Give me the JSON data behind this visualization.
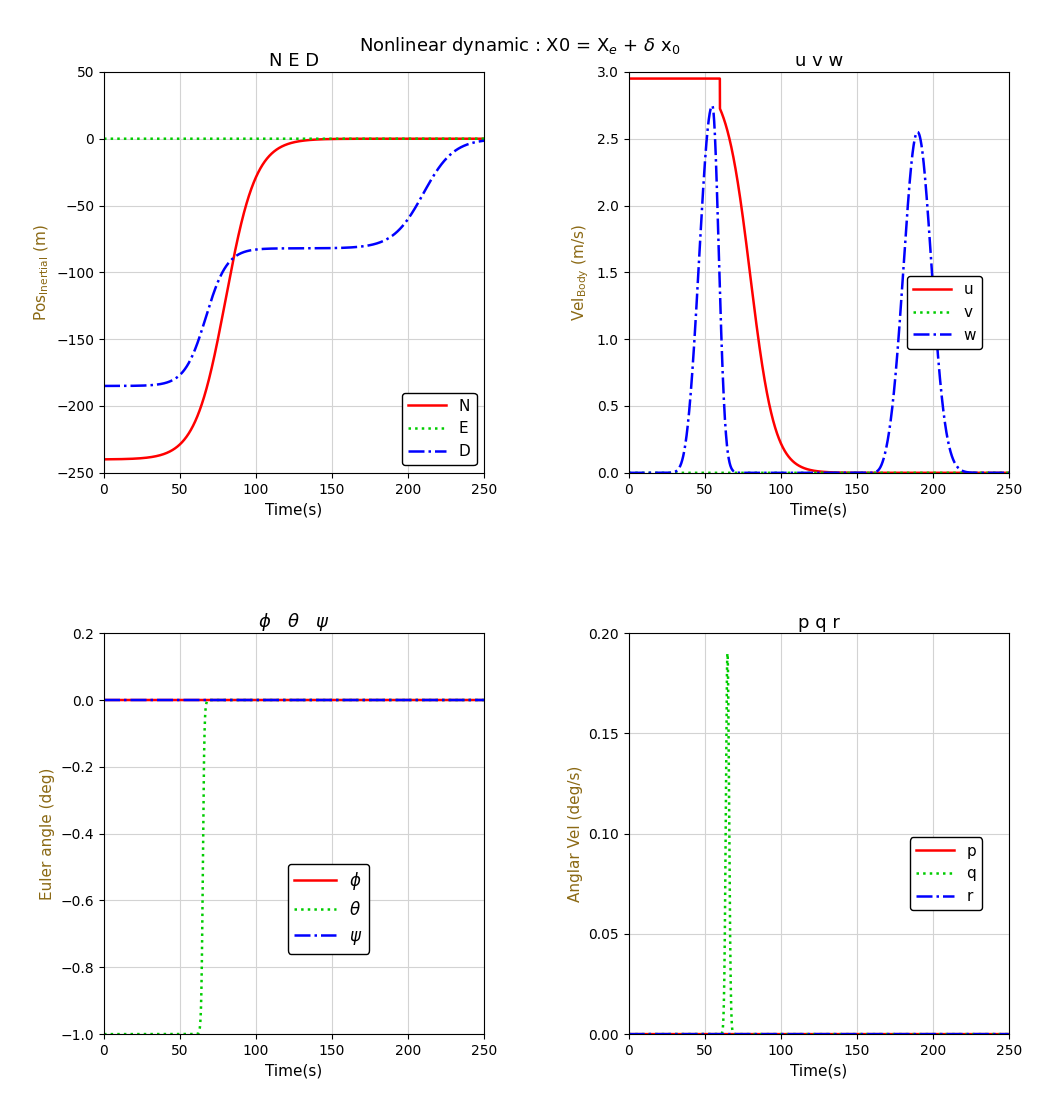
{
  "title_text": "Nonlinear dynamic : X0 = X",
  "xlim": [
    0,
    250
  ],
  "ned_ylim": [
    -250,
    50
  ],
  "uvw_ylim": [
    0,
    3
  ],
  "euler_ylim": [
    -1,
    0.2
  ],
  "pqr_ylim": [
    0,
    0.2
  ],
  "ned_yticks": [
    -250,
    -200,
    -150,
    -100,
    -50,
    0,
    50
  ],
  "uvw_yticks": [
    0,
    0.5,
    1.0,
    1.5,
    2.0,
    2.5,
    3.0
  ],
  "euler_yticks": [
    -1.0,
    -0.8,
    -0.6,
    -0.4,
    -0.2,
    0.0,
    0.2
  ],
  "pqr_yticks": [
    0,
    0.05,
    0.1,
    0.15,
    0.2
  ],
  "xticks": [
    0,
    50,
    100,
    150,
    200,
    250
  ],
  "red": "#FF0000",
  "green": "#00CC00",
  "blue": "#0000FF",
  "ylabel_color": "#8B6914",
  "bg_color": "#FFFFFF",
  "grid_color": "#D3D3D3",
  "lw": 1.8
}
